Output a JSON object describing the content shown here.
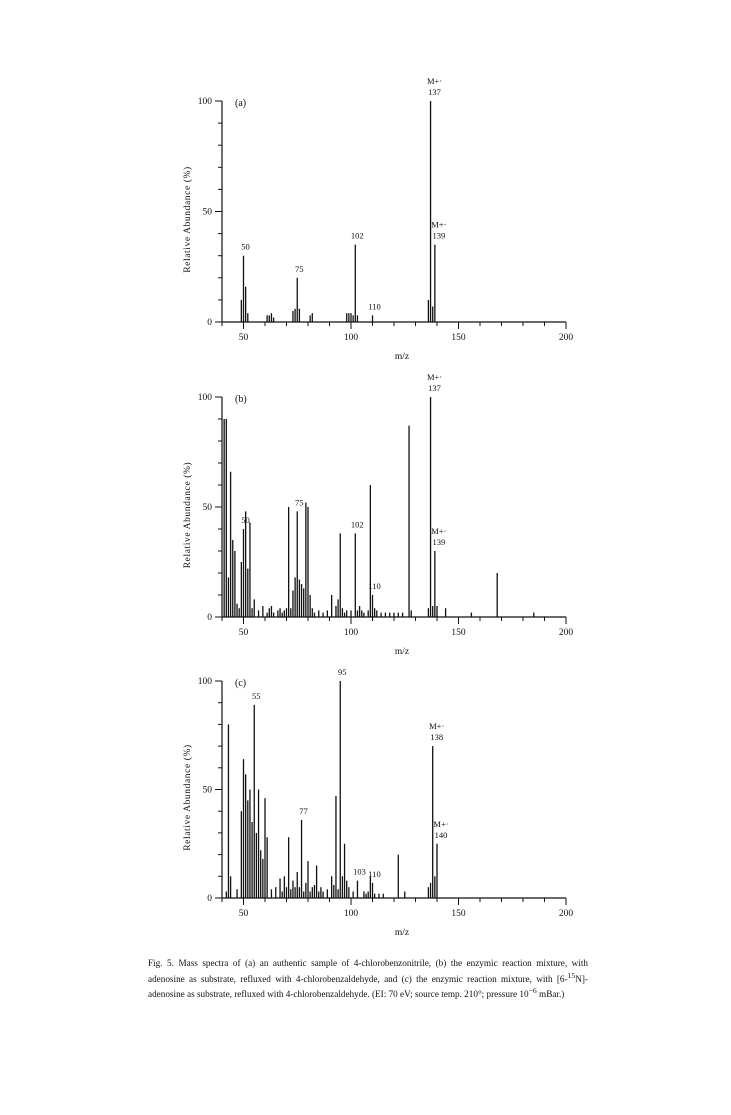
{
  "chart_data": [
    {
      "type": "bar",
      "panel_label": "(a)",
      "xlabel": "m/z",
      "ylabel": "Relative Abundance (%)",
      "xlim": [
        40,
        200
      ],
      "ylim": [
        0,
        100
      ],
      "x_ticks": [
        50,
        100,
        150,
        200
      ],
      "y_ticks": [
        0,
        50,
        100
      ],
      "x": [
        49,
        50,
        51,
        52,
        61,
        62,
        63,
        64,
        73,
        74,
        75,
        76,
        81,
        82,
        98,
        99,
        100,
        101,
        102,
        103,
        110,
        136,
        137,
        138,
        139
      ],
      "y": [
        10,
        30,
        16,
        4,
        3,
        3,
        4,
        2,
        5,
        6,
        20,
        6,
        3,
        4,
        4,
        4,
        4,
        3,
        35,
        3,
        3,
        10,
        100,
        7,
        35
      ],
      "annotations": [
        {
          "x": 50,
          "text": "50"
        },
        {
          "x": 75,
          "text": "75"
        },
        {
          "x": 102,
          "text": "102"
        },
        {
          "x": 110,
          "text": "110"
        },
        {
          "x": 137,
          "text": "137",
          "ion": "M+·"
        },
        {
          "x": 139,
          "text": "139",
          "ion": "M+·"
        }
      ]
    },
    {
      "type": "bar",
      "panel_label": "(b)",
      "xlabel": "m/z",
      "ylabel": "Relative Abundance (%)",
      "xlim": [
        40,
        200
      ],
      "ylim": [
        0,
        100
      ],
      "x_ticks": [
        50,
        100,
        150,
        200
      ],
      "y_ticks": [
        0,
        50,
        100
      ],
      "x": [
        41,
        42,
        43,
        44,
        45,
        46,
        47,
        48,
        49,
        50,
        51,
        52,
        53,
        54,
        55,
        57,
        59,
        61,
        62,
        63,
        64,
        66,
        67,
        68,
        69,
        70,
        71,
        72,
        73,
        74,
        75,
        76,
        77,
        78,
        79,
        80,
        81,
        82,
        83,
        85,
        87,
        89,
        91,
        93,
        94,
        95,
        96,
        97,
        98,
        100,
        102,
        103,
        104,
        105,
        106,
        108,
        109,
        110,
        111,
        112,
        114,
        116,
        118,
        120,
        122,
        124,
        127,
        128,
        136,
        137,
        138,
        139,
        140,
        144,
        156,
        168,
        185
      ],
      "y": [
        90,
        90,
        18,
        66,
        35,
        30,
        6,
        4,
        25,
        40,
        48,
        22,
        43,
        4,
        8,
        3,
        5,
        2,
        4,
        5,
        2,
        3,
        4,
        2,
        3,
        4,
        50,
        4,
        12,
        18,
        48,
        17,
        15,
        13,
        52,
        50,
        10,
        4,
        2,
        3,
        2,
        3,
        10,
        5,
        8,
        38,
        4,
        2,
        3,
        3,
        38,
        3,
        5,
        3,
        2,
        3,
        60,
        10,
        4,
        3,
        2,
        2,
        2,
        2,
        2,
        2,
        87,
        3,
        4,
        100,
        5,
        30,
        5,
        4,
        2,
        20,
        2
      ],
      "annotations": [
        {
          "x": 50,
          "text": "50"
        },
        {
          "x": 75,
          "text": "75"
        },
        {
          "x": 102,
          "text": "102"
        },
        {
          "x": 110,
          "text": "110"
        },
        {
          "x": 137,
          "text": "137",
          "ion": "M+·"
        },
        {
          "x": 139,
          "text": "139",
          "ion": "M+·"
        }
      ]
    },
    {
      "type": "bar",
      "panel_label": "(c)",
      "xlabel": "m/z",
      "ylabel": "Relative Abundance (%)",
      "xlim": [
        40,
        200
      ],
      "ylim": [
        0,
        100
      ],
      "x_ticks": [
        50,
        100,
        150,
        200
      ],
      "y_ticks": [
        0,
        50,
        100
      ],
      "x": [
        42,
        43,
        44,
        47,
        49,
        50,
        51,
        52,
        53,
        54,
        55,
        56,
        57,
        58,
        59,
        60,
        61,
        63,
        65,
        67,
        68,
        69,
        70,
        71,
        72,
        73,
        74,
        75,
        76,
        77,
        78,
        79,
        80,
        81,
        82,
        83,
        84,
        85,
        86,
        87,
        89,
        91,
        92,
        93,
        94,
        95,
        96,
        97,
        98,
        99,
        101,
        103,
        106,
        107,
        108,
        109,
        110,
        111,
        113,
        115,
        122,
        125,
        136,
        137,
        138,
        139,
        140
      ],
      "y": [
        3,
        80,
        10,
        4,
        40,
        64,
        57,
        45,
        50,
        35,
        89,
        30,
        50,
        22,
        18,
        46,
        28,
        4,
        5,
        9,
        3,
        10,
        5,
        28,
        4,
        8,
        5,
        12,
        5,
        36,
        3,
        7,
        17,
        3,
        5,
        6,
        15,
        3,
        5,
        3,
        4,
        10,
        6,
        47,
        4,
        100,
        10,
        25,
        8,
        5,
        3,
        8,
        3,
        2,
        3,
        10,
        7,
        2,
        2,
        2,
        20,
        3,
        5,
        7,
        70,
        10,
        25
      ],
      "annotations": [
        {
          "x": 55,
          "text": "55"
        },
        {
          "x": 77,
          "text": "77"
        },
        {
          "x": 95,
          "text": "95"
        },
        {
          "x": 103,
          "text": "103"
        },
        {
          "x": 110,
          "text": "110"
        },
        {
          "x": 138,
          "text": "138",
          "ion": "M+·"
        },
        {
          "x": 140,
          "text": "140",
          "ion": "M+·"
        }
      ]
    }
  ],
  "caption": {
    "part1": "Fig. 5. Mass spectra of (a) an authentic sample of 4-chlorobenzonitrile, (b) the enzymic reaction mixture, with adenosine as substrate, refluxed with 4-chlorobenzaldehyde, and (c) the enzymic reaction mixture, with [6-",
    "isotope_mass": "15",
    "part2": "N]-adenosine as substrate, refluxed with 4-chlorobenzaldehyde. (EI: 70 eV; source temp. 210°; pressure 10",
    "pressure_exponent": "−6",
    "part3": " mBar.)"
  }
}
